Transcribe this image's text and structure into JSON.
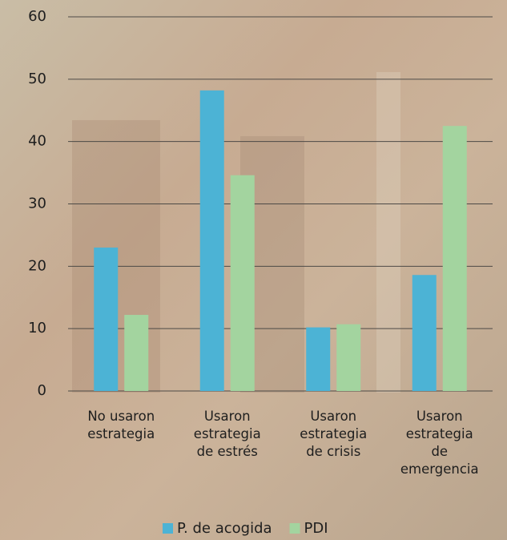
{
  "chart_data": {
    "type": "bar",
    "categories": [
      "No usaron estrategia",
      "Usaron estrategia de estrés",
      "Usaron estrategia de crisis",
      "Usaron estrategia de emergencia"
    ],
    "series": [
      {
        "name": "P. de acogida",
        "color": "#4cb3d5",
        "values": [
          23,
          48.2,
          10.2,
          18.6
        ]
      },
      {
        "name": "PDI",
        "color": "#a3d49f",
        "values": [
          12.2,
          34.6,
          10.7,
          42.5
        ]
      }
    ],
    "ylim": [
      0,
      60
    ],
    "yticks": [
      0,
      10,
      20,
      30,
      40,
      50,
      60
    ],
    "grid": true,
    "legend": "bottom"
  }
}
